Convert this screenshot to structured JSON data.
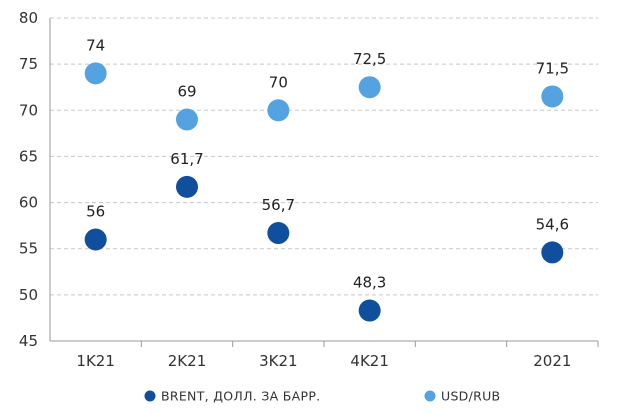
{
  "chart_data": {
    "type": "scatter",
    "categories": [
      "1K21",
      "2K21",
      "3K21",
      "4K21",
      "",
      "2021"
    ],
    "y_ticks": [
      "80",
      "75",
      "70",
      "65",
      "60",
      "55",
      "50",
      "45"
    ],
    "ylim": [
      45,
      80
    ],
    "grid": true,
    "legend_position": "bottom",
    "series": [
      {
        "name": "BRENT, ДОЛЛ. ЗА БАРР.",
        "color": "#0f4f9e",
        "values": [
          56,
          61.7,
          56.7,
          48.3,
          null,
          54.6
        ],
        "labels": [
          "56",
          "61,7",
          "56,7",
          "48,3",
          "",
          "54,6"
        ]
      },
      {
        "name": "USD/RUB",
        "color": "#55a2e0",
        "values": [
          74,
          69,
          70,
          72.5,
          null,
          71.5
        ],
        "labels": [
          "74",
          "69",
          "70",
          "72,5",
          "",
          "71,5"
        ]
      }
    ]
  }
}
